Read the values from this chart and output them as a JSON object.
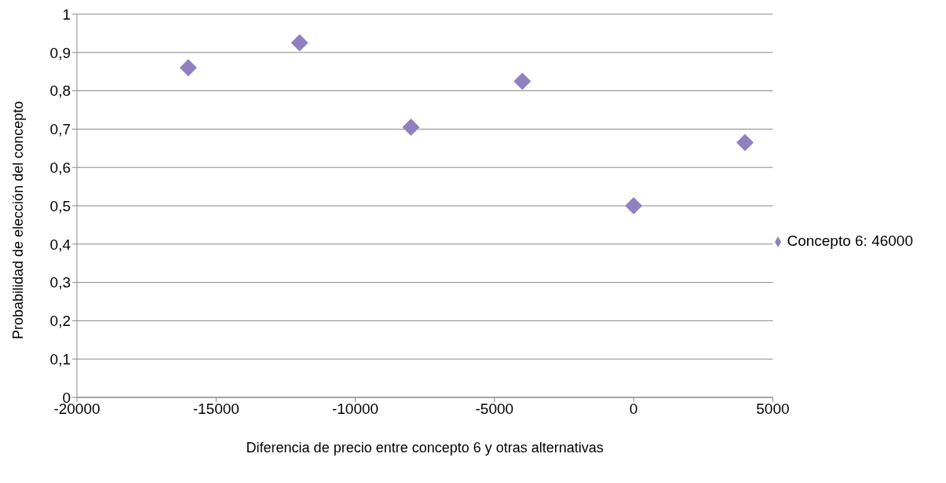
{
  "chart_data": {
    "type": "scatter",
    "xlabel": "Diferencia de precio entre concepto 6 y otras alternativas",
    "ylabel": "Probabilidad de elección del concepto",
    "x": [
      -16000,
      -12000,
      -8000,
      -4000,
      0,
      4000
    ],
    "series": [
      {
        "name": "Concepto 6: 46000",
        "color": "#9180c0",
        "values": [
          0.86,
          0.925,
          0.705,
          0.825,
          0.5,
          0.665
        ]
      }
    ],
    "xlim": [
      -20000,
      5000
    ],
    "xticks": [
      -20000,
      -15000,
      -10000,
      -5000,
      0,
      5000
    ],
    "ylim": [
      0,
      1
    ],
    "yticks": [
      0,
      {
        "value": 0.1,
        "label": "0,1"
      },
      {
        "value": 0.2,
        "label": "0,2"
      },
      {
        "value": 0.3,
        "label": "0,3"
      },
      {
        "value": 0.4,
        "label": "0,4"
      },
      {
        "value": 0.5,
        "label": "0,5"
      },
      {
        "value": 0.6,
        "label": "0,6"
      },
      {
        "value": 0.7,
        "label": "0,7"
      },
      {
        "value": 0.8,
        "label": "0,8"
      },
      {
        "value": 0.9,
        "label": "0,9"
      },
      1
    ],
    "grid": "y",
    "legend": "right",
    "marker": "diamond"
  }
}
